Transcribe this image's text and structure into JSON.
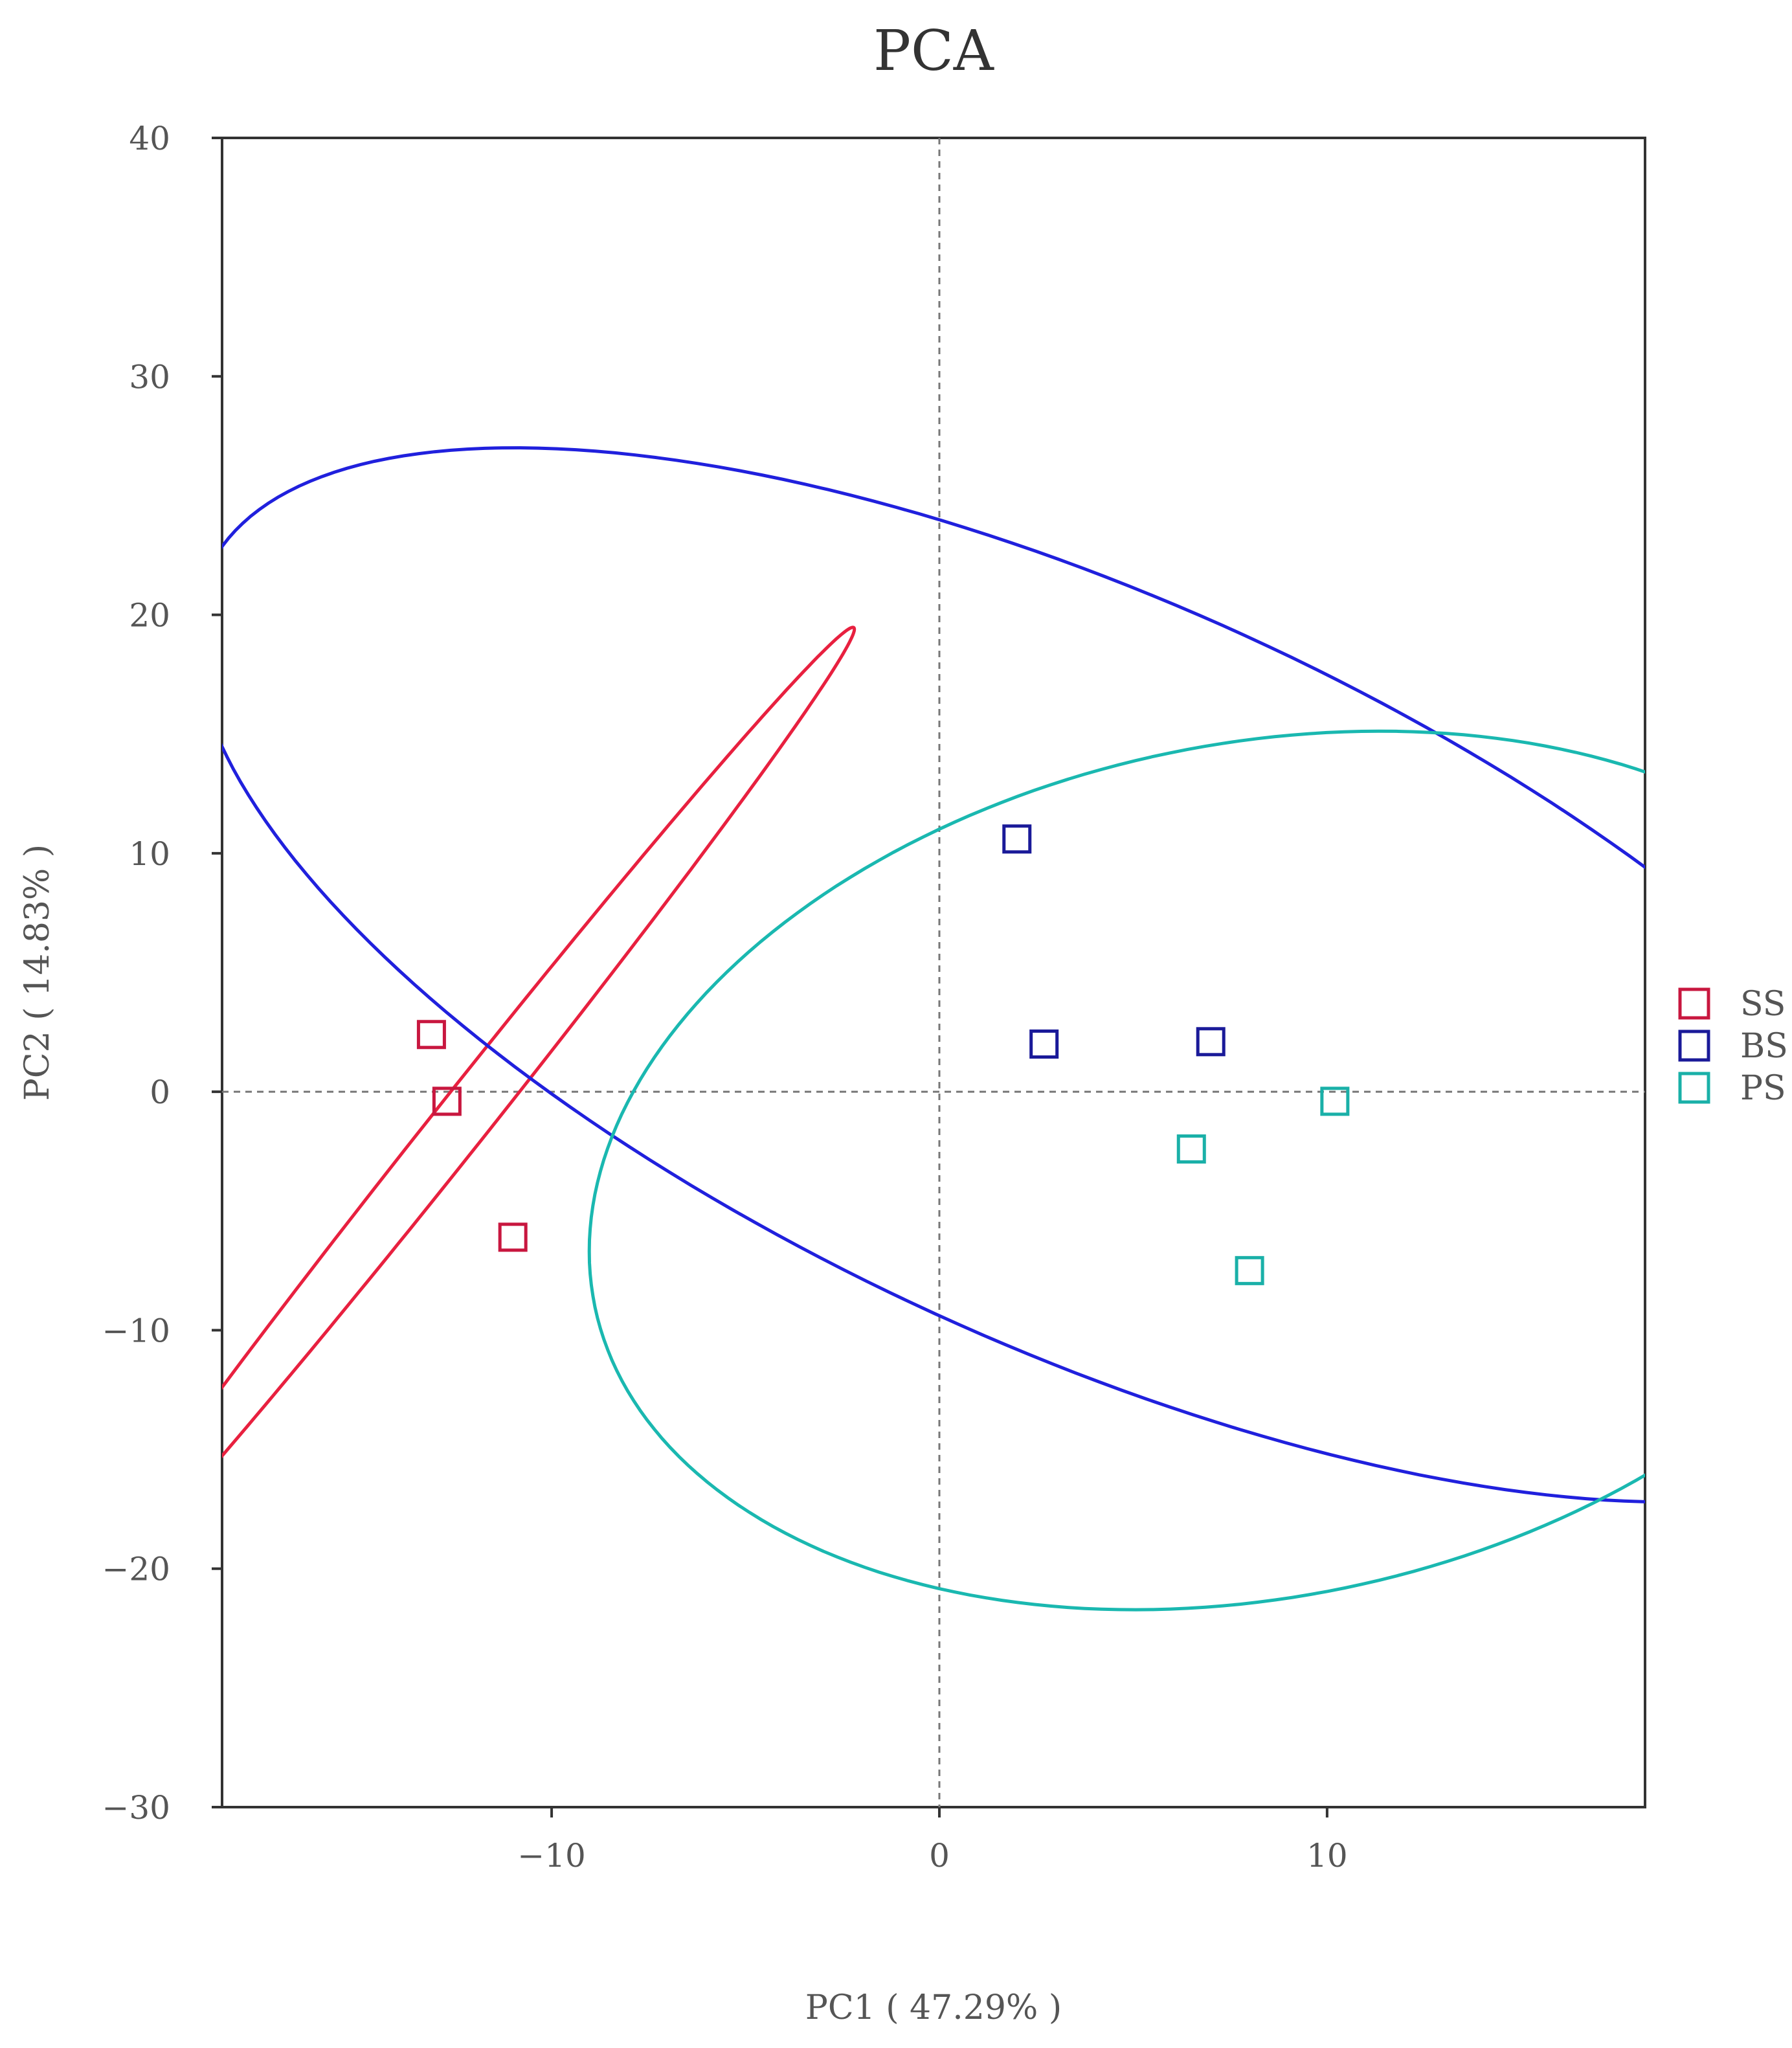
{
  "chart_data": {
    "type": "scatter",
    "title": "PCA",
    "xlabel": "PC1 ( 47.29% )",
    "ylabel": "PC2 ( 14.83% )",
    "xlim": [
      -18.5,
      18.2
    ],
    "ylim": [
      -30,
      40
    ],
    "xticks": [
      -10,
      0,
      10
    ],
    "xtick_labels": [
      "−10",
      "0",
      "10"
    ],
    "yticks": [
      40,
      30,
      20,
      10,
      0,
      -10,
      -20,
      -30
    ],
    "ytick_labels": [
      "40",
      "30",
      "20",
      "10",
      "0",
      "−10",
      "−20",
      "−30"
    ],
    "reference_lines": {
      "x": 0,
      "y": 0,
      "style": "dashed"
    },
    "grid": false,
    "legend_position": "right",
    "marker": "open-square",
    "series": [
      {
        "name": "SS",
        "color": "#c8173f",
        "ellipse_color": "#e8203f",
        "points": [
          [
            -13.1,
            2.4
          ],
          [
            -12.7,
            -0.4
          ],
          [
            -11.0,
            -6.1
          ]
        ],
        "ellipse": {
          "center": [
            -12.3,
            -1.2
          ],
          "semi_major": 23.0,
          "semi_minor": 0.8,
          "angle_deg": 64
        }
      },
      {
        "name": "BS",
        "color": "#1a1a99",
        "ellipse_color": "#2020dd",
        "points": [
          [
            2.0,
            10.6
          ],
          [
            2.7,
            2.0
          ],
          [
            7.0,
            2.1
          ]
        ],
        "ellipse": {
          "center": [
            3.9,
            4.9
          ],
          "semi_major": 29.0,
          "semi_minor": 13.5,
          "angle_deg": -43
        }
      },
      {
        "name": "PS",
        "color": "#1ab0a8",
        "ellipse_color": "#1ab8b0",
        "points": [
          [
            6.5,
            -2.4
          ],
          [
            8.0,
            -7.5
          ],
          [
            10.2,
            -0.4
          ]
        ],
        "ellipse": {
          "center": [
            8.2,
            -3.3
          ],
          "semi_major": 19.5,
          "semi_minor": 16.0,
          "angle_deg": 55
        }
      }
    ]
  }
}
